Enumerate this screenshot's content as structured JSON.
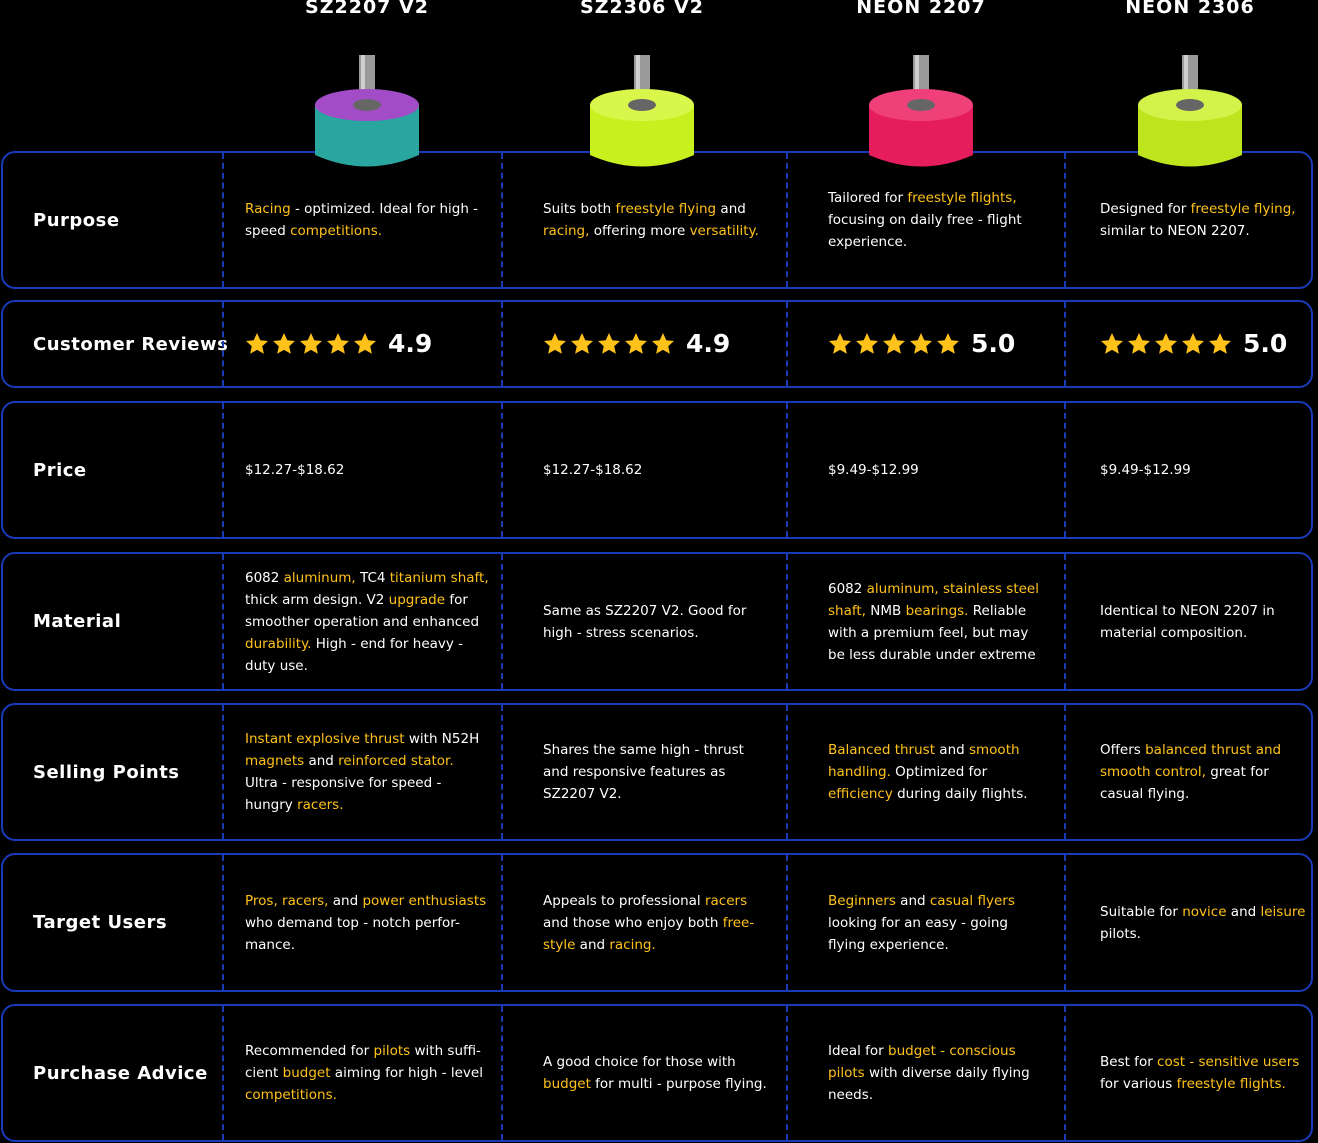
{
  "columns": [
    "SZ2207 V2",
    "SZ2306 V2",
    "NEON 2207",
    "NEON 2306"
  ],
  "rows": [
    {
      "label": "Purpose",
      "cells": [
        [
          {
            "text": "Racing",
            "highlight": true
          },
          " - optimized. Ideal for high - speed ",
          {
            "text": "competitions.",
            "highlight": true
          }
        ],
        [
          "Suits both ",
          {
            "text": "freestyle flying",
            "highlight": true
          },
          " and ",
          {
            "text": "racing,",
            "highlight": true
          },
          " offering more ",
          {
            "text": "versatility.",
            "highlight": true
          }
        ],
        [
          "Tailored for ",
          {
            "text": "freestyle flights,",
            "highlight": true
          },
          " focusing on daily free - flight experience."
        ],
        [
          "Designed for ",
          {
            "text": "freestyle flying,",
            "highlight": true
          },
          " similar to NEON 2207."
        ]
      ]
    },
    {
      "label": "Customer Reviews",
      "ratings": [
        "4.9",
        "4.9",
        "5.0",
        "5.0"
      ]
    },
    {
      "label": "Price",
      "cells": [
        [
          "$12.27-$18.62"
        ],
        [
          "$12.27-$18.62"
        ],
        [
          "$9.49-$12.99"
        ],
        [
          "$9.49-$12.99"
        ]
      ]
    },
    {
      "label": "Material",
      "cells": [
        [
          "6082 ",
          {
            "text": "aluminum,",
            "highlight": true
          },
          " TC4 ",
          {
            "text": "titanium shaft,",
            "highlight": true
          },
          " thick arm design. V2 ",
          {
            "text": "upgrade",
            "highlight": true
          },
          " for smoother operation and enhanced ",
          {
            "text": "durability.",
            "highlight": true
          },
          " High - end for heavy - duty use."
        ],
        [
          "Same as SZ2207 V2. Good for high - stress scenarios."
        ],
        [
          "6082 ",
          {
            "text": "aluminum, stainless steel shaft,",
            "highlight": true
          },
          " NMB ",
          {
            "text": "bearings.",
            "highlight": true
          },
          " Reliable with a premium feel, but may be less durable under extreme"
        ],
        [
          "Identical to NEON 2207 in material composition."
        ]
      ]
    },
    {
      "label": "Selling Points",
      "cells": [
        [
          {
            "text": "Instant explosive thrust",
            "highlight": true
          },
          " with N52H ",
          {
            "text": "magnets",
            "highlight": true
          },
          " and ",
          {
            "text": "reinforced stator.",
            "highlight": true
          },
          " Ultra - responsive for speed - hungry ",
          {
            "text": "racers.",
            "highlight": true
          }
        ],
        [
          "Shares the same high - thrust and responsive features as SZ2207 V2."
        ],
        [
          {
            "text": "Balanced thrust",
            "highlight": true
          },
          " and ",
          {
            "text": "smooth handling.",
            "highlight": true
          },
          " Optimized for ",
          {
            "text": "efficiency",
            "highlight": true
          },
          " during daily flights."
        ],
        [
          "Offers ",
          {
            "text": "balanced thrust and smooth control,",
            "highlight": true
          },
          " great for casual flying."
        ]
      ]
    },
    {
      "label": "Target Users",
      "cells": [
        [
          {
            "text": "Pros, racers,",
            "highlight": true
          },
          " and ",
          {
            "text": "power enthusiasts",
            "highlight": true
          },
          " who demand top - notch perfor-mance."
        ],
        [
          "Appeals to professional ",
          {
            "text": "racers",
            "highlight": true
          },
          " and those who enjoy both ",
          {
            "text": "free-style",
            "highlight": true
          },
          " and ",
          {
            "text": "racing.",
            "highlight": true
          }
        ],
        [
          {
            "text": "Beginners",
            "highlight": true
          },
          " and ",
          {
            "text": "casual flyers",
            "highlight": true
          },
          " looking for an easy - going flying experience."
        ],
        [
          "Suitable for ",
          {
            "text": "novice",
            "highlight": true
          },
          " and ",
          {
            "text": "leisure",
            "highlight": true
          },
          " pilots."
        ]
      ]
    },
    {
      "label": "Purchase Advice",
      "cells": [
        [
          "Recommended for ",
          {
            "text": "pilots",
            "highlight": true
          },
          " with suffi-cient ",
          {
            "text": "budget",
            "highlight": true
          },
          " aiming for high - level ",
          {
            "text": "competitions.",
            "highlight": true
          }
        ],
        [
          "A good choice for those with ",
          {
            "text": "budget",
            "highlight": true
          },
          " for multi - purpose flying."
        ],
        [
          "Ideal for ",
          {
            "text": "budget - conscious pilots",
            "highlight": true
          },
          " with diverse daily flying needs."
        ],
        [
          "Best for ",
          {
            "text": "cost - sensitive users",
            "highlight": true
          },
          " for various ",
          {
            "text": "freestyle flights.",
            "highlight": true
          }
        ]
      ]
    }
  ]
}
